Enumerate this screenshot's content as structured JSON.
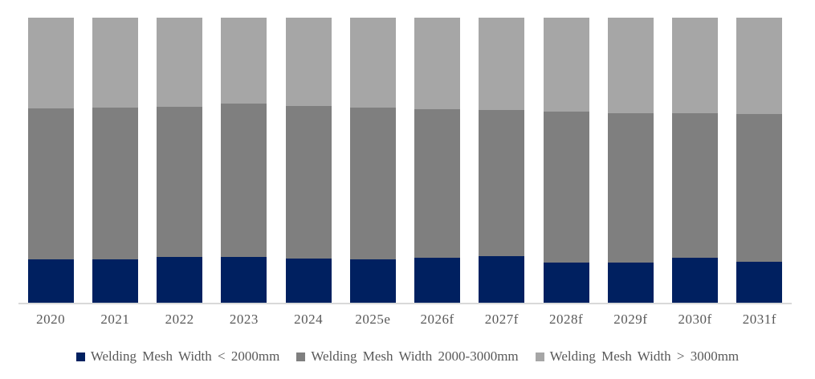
{
  "chart_data": {
    "type": "bar",
    "variant": "stacked-100-percent",
    "title": "",
    "xlabel": "",
    "ylabel": "",
    "ylim": [
      0,
      100
    ],
    "unit": "percent",
    "grid": false,
    "legend_position": "bottom",
    "categories": [
      "2020",
      "2021",
      "2022",
      "2023",
      "2024",
      "2025e",
      "2026f",
      "2027f",
      "2028f",
      "2029f",
      "2030f",
      "2031f"
    ],
    "series": [
      {
        "name": "Welding Mesh Width < 2000mm",
        "color": "#002060",
        "values": [
          15.1,
          15.3,
          16.1,
          16.2,
          15.6,
          15.1,
          15.8,
          16.4,
          14.1,
          14.1,
          15.9,
          14.5
        ]
      },
      {
        "name": "Welding Mesh Width 2000-3000mm",
        "color": "#7F7F7F",
        "values": [
          53.1,
          53.2,
          52.6,
          53.6,
          53.4,
          53.4,
          52.2,
          51.1,
          53.0,
          52.5,
          50.5,
          51.6
        ]
      },
      {
        "name": "Welding Mesh Width > 3000mm",
        "color": "#A6A6A6",
        "values": [
          31.8,
          31.5,
          31.3,
          30.2,
          31.0,
          31.5,
          32.0,
          32.5,
          32.9,
          33.4,
          33.6,
          33.9
        ]
      }
    ],
    "axis_line_color": "#D9D9D9",
    "tick_label_color": "#595959",
    "legend_text_color": "#595959",
    "background_color": "#FFFFFF"
  }
}
